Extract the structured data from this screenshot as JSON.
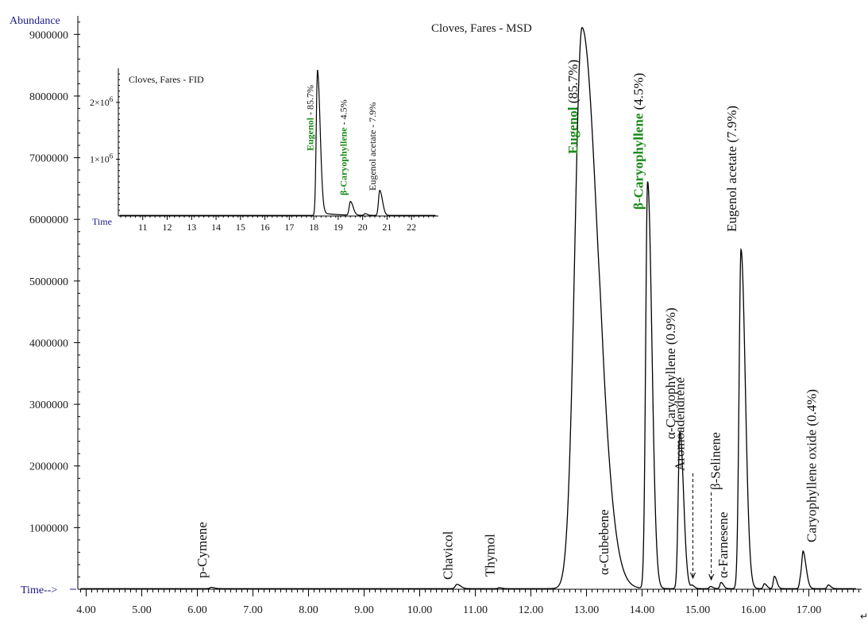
{
  "chart_data": [
    {
      "type": "line",
      "title": "Cloves, Fares - MSD",
      "ylabel": "Abundance",
      "xlabel": "Time-->",
      "xlim": [
        3.85,
        17.95
      ],
      "ylim": [
        0,
        9300000
      ],
      "x_ticks": [
        "4.00",
        "5.00",
        "6.00",
        "7.00",
        "8.00",
        "9.00",
        "10.00",
        "11.00",
        "12.00",
        "13.00",
        "14.00",
        "15.00",
        "16.00",
        "17.00"
      ],
      "y_ticks": [
        "1000000",
        "2000000",
        "3000000",
        "4000000",
        "5000000",
        "6000000",
        "7000000",
        "8000000",
        "9000000"
      ],
      "baseline": 10000,
      "peaks": [
        {
          "rt": 6.25,
          "height": 20000,
          "width": 0.025
        },
        {
          "rt": 10.67,
          "height": 70000,
          "width": 0.03
        },
        {
          "rt": 11.43,
          "height": 15000,
          "width": 0.02
        },
        {
          "rt": 12.92,
          "height": 9100000,
          "width": 0.13
        },
        {
          "rt": 13.25,
          "height": 90000,
          "width": 0.02
        },
        {
          "rt": 14.1,
          "height": 6600000,
          "width": 0.035
        },
        {
          "rt": 14.68,
          "height": 2550000,
          "width": 0.03
        },
        {
          "rt": 14.9,
          "height": 50000,
          "width": 0.02
        },
        {
          "rt": 15.23,
          "height": 35000,
          "width": 0.02
        },
        {
          "rt": 15.42,
          "height": 100000,
          "width": 0.02
        },
        {
          "rt": 15.78,
          "height": 5500000,
          "width": 0.035
        },
        {
          "rt": 16.2,
          "height": 80000,
          "width": 0.02
        },
        {
          "rt": 16.38,
          "height": 200000,
          "width": 0.02
        },
        {
          "rt": 16.85,
          "height": 150000,
          "width": 0.02
        },
        {
          "rt": 16.9,
          "height": 530000,
          "width": 0.025
        },
        {
          "rt": 17.35,
          "height": 60000,
          "width": 0.02
        }
      ],
      "annotations": [
        {
          "text": "p-Cymene",
          "x": 6.25
        },
        {
          "text": "Chavicol",
          "x": 10.67
        },
        {
          "text": "Thymol",
          "x": 11.43
        },
        {
          "bold": "Eugenol",
          "rest": " (85.7%)",
          "x": 12.92
        },
        {
          "text": "α-Cubebene",
          "x": 13.25
        },
        {
          "bold": "β-Caryophyllene",
          "rest": " (4.5%)",
          "x": 14.1
        },
        {
          "text": "α-Caryophyllene (0.9%)",
          "x": 14.68
        },
        {
          "text": "Aromoadendrene",
          "x": 14.9
        },
        {
          "text": "β-Selinene",
          "x": 15.23
        },
        {
          "text": "α-Farnesene",
          "x": 15.42
        },
        {
          "text": "Eugenol acetate (7.9%)",
          "x": 15.78
        },
        {
          "text": "Caryophyllene oxide (0.4%)",
          "x": 16.9
        }
      ]
    },
    {
      "type": "line",
      "title": "Cloves, Fares - FID",
      "xlabel": "Time",
      "xlim": [
        10.0,
        23.1
      ],
      "ylim": [
        0,
        2600000
      ],
      "x_ticks": [
        "11",
        "12",
        "13",
        "14",
        "15",
        "16",
        "17",
        "18",
        "19",
        "20",
        "21",
        "22"
      ],
      "y_ticks": [
        {
          "label": "1×10",
          "sup": "6"
        },
        {
          "label": "2×10",
          "sup": "6"
        }
      ],
      "baseline": 10000,
      "peaks": [
        {
          "rt": 18.15,
          "height": 2500000,
          "width": 0.05
        },
        {
          "rt": 19.5,
          "height": 240000,
          "width": 0.05
        },
        {
          "rt": 20.1,
          "height": 30000,
          "width": 0.04
        },
        {
          "rt": 20.7,
          "height": 440000,
          "width": 0.05
        }
      ],
      "annotations": [
        {
          "bold": "Eugenol",
          "rest": " - 85.7%",
          "x": 18.15
        },
        {
          "bold": "β-Caryophyllene",
          "rest": " - 4.5%",
          "x": 19.5
        },
        {
          "text": "Eugenol acetate - 7.9%",
          "x": 20.7
        }
      ]
    }
  ],
  "corner_mark": "↵"
}
